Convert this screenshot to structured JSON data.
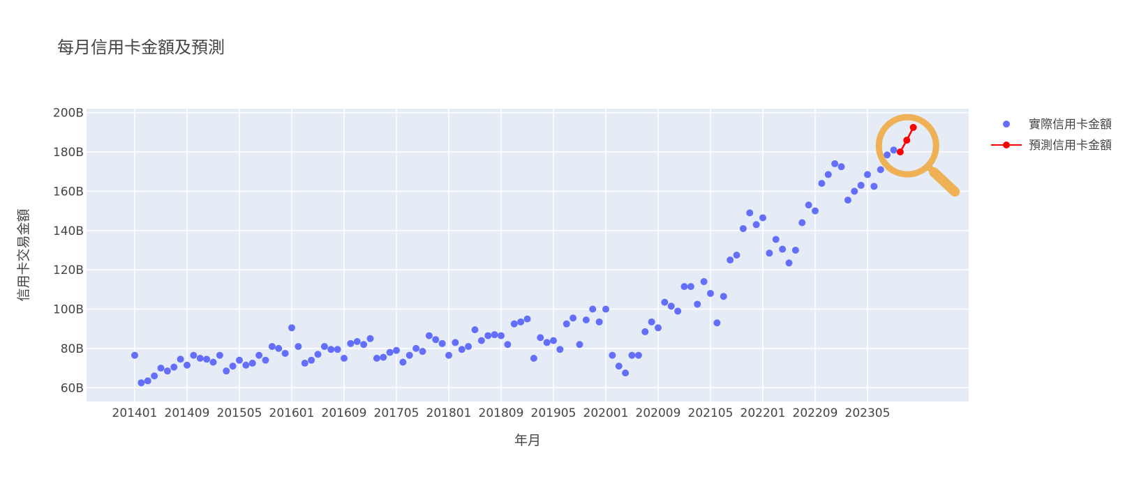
{
  "chart_data": {
    "type": "scatter",
    "title": "每月信用卡金額及預測",
    "xlabel": "年月",
    "ylabel": "信用卡交易金額",
    "y_unit_suffix": "B",
    "ylim": [
      53,
      202
    ],
    "yticks": [
      60,
      80,
      100,
      120,
      140,
      160,
      180,
      200
    ],
    "xticks": [
      "201401",
      "201409",
      "201505",
      "201601",
      "201609",
      "201705",
      "201801",
      "201809",
      "201905",
      "202001",
      "202009",
      "202105",
      "202201",
      "202209",
      "202305"
    ],
    "grid": true,
    "legend_position": "top-right",
    "annotation": "magnifier-icon highlighting forecast points",
    "colors": {
      "actual": "#636efa",
      "forecast": "#ff0000",
      "magnifier": "#eeb155",
      "plot_bg": "#e5ecf6"
    },
    "series": [
      {
        "name": "實際信用卡金額",
        "mode": "markers",
        "start": "201401",
        "values": [
          76.5,
          62.5,
          63.5,
          66,
          70,
          68.5,
          70.5,
          74.5,
          71.5,
          76.5,
          75,
          74.5,
          73,
          76.5,
          68.5,
          71,
          74,
          71.5,
          72.5,
          76.5,
          74,
          81,
          80,
          77.5,
          90.5,
          81,
          72.5,
          74,
          77,
          81,
          79.5,
          79.5,
          75,
          82.5,
          83.5,
          82,
          85,
          75,
          75.5,
          78,
          79,
          73,
          76.5,
          80,
          78.5,
          86.5,
          84.5,
          82.5,
          76.5,
          83,
          79.5,
          81,
          89.5,
          84,
          86.5,
          87,
          86.5,
          82,
          92.5,
          93.5,
          95,
          75,
          85.5,
          83,
          84,
          79.5,
          92.5,
          95.5,
          82,
          94.5,
          100,
          93.5,
          100,
          76.5,
          71,
          67.5,
          76.5,
          76.5,
          88.5,
          93.5,
          90.5,
          103.5,
          101.5,
          99,
          111.5,
          111.5,
          102.5,
          114,
          108,
          93,
          106.5,
          125,
          127.5,
          141,
          149,
          143,
          146.5,
          128.5,
          135.5,
          130.5,
          123.5,
          130,
          144,
          153,
          150,
          164,
          168.5,
          174,
          172.5,
          155.5,
          160,
          163,
          168.5,
          162.5,
          171,
          178.5,
          181
        ]
      },
      {
        "name": "預測信用卡金額",
        "mode": "lines+markers",
        "start": "202310",
        "values": [
          180,
          186,
          192.5
        ]
      }
    ]
  }
}
